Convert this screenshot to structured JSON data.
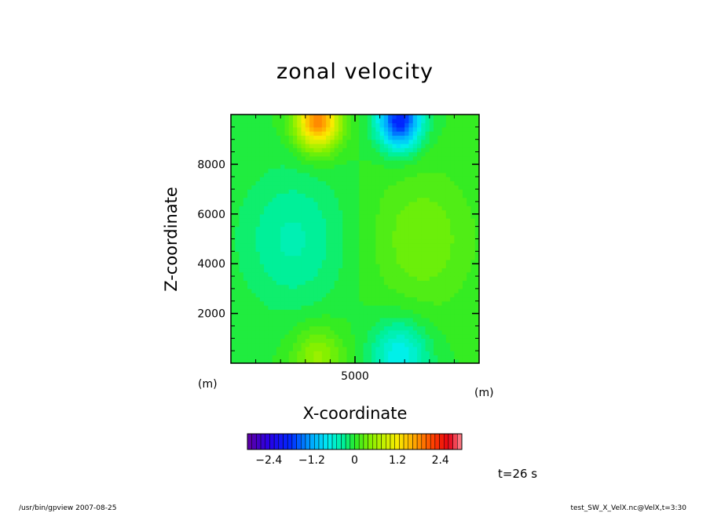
{
  "chart_data": {
    "type": "heatmap",
    "title": "zonal velocity",
    "xlabel": "X-coordinate",
    "ylabel": "Z-coordinate",
    "x_unit": "(m)",
    "y_unit": "(m)",
    "xlim": [
      0,
      10000
    ],
    "ylim": [
      0,
      10000
    ],
    "x_ticks": [
      5000
    ],
    "y_ticks": [
      2000,
      4000,
      6000,
      8000
    ],
    "colorbar": {
      "range": [
        -3.0,
        3.0
      ],
      "levels": 48,
      "ticks": [
        -2.4,
        -1.2,
        0,
        1.2,
        2.4
      ],
      "tick_labels": [
        "−2.4",
        "−1.2",
        "0",
        "1.2",
        "2.4"
      ]
    },
    "features": [
      {
        "x": 3500,
        "z": 9800,
        "value": 1.9,
        "sx": 600,
        "sz": 800
      },
      {
        "x": 6800,
        "z": 9800,
        "value": -1.9,
        "sx": 600,
        "sz": 800
      },
      {
        "x": 3500,
        "z": 200,
        "value": 0.55,
        "sx": 700,
        "sz": 900
      },
      {
        "x": 6800,
        "z": 300,
        "value": -0.75,
        "sx": 800,
        "sz": 1000
      },
      {
        "x": 2500,
        "z": 5000,
        "value": -0.4,
        "sx": 1500,
        "sz": 2000
      },
      {
        "x": 7700,
        "z": 5000,
        "value": 0.35,
        "sx": 1500,
        "sz": 2000
      }
    ],
    "grid": false,
    "time_label": "t=26 s"
  },
  "footer": {
    "left": "/usr/bin/gpview   2007-08-25",
    "right": "test_SW_X_VelX.nc@VelX,t=3:30"
  }
}
